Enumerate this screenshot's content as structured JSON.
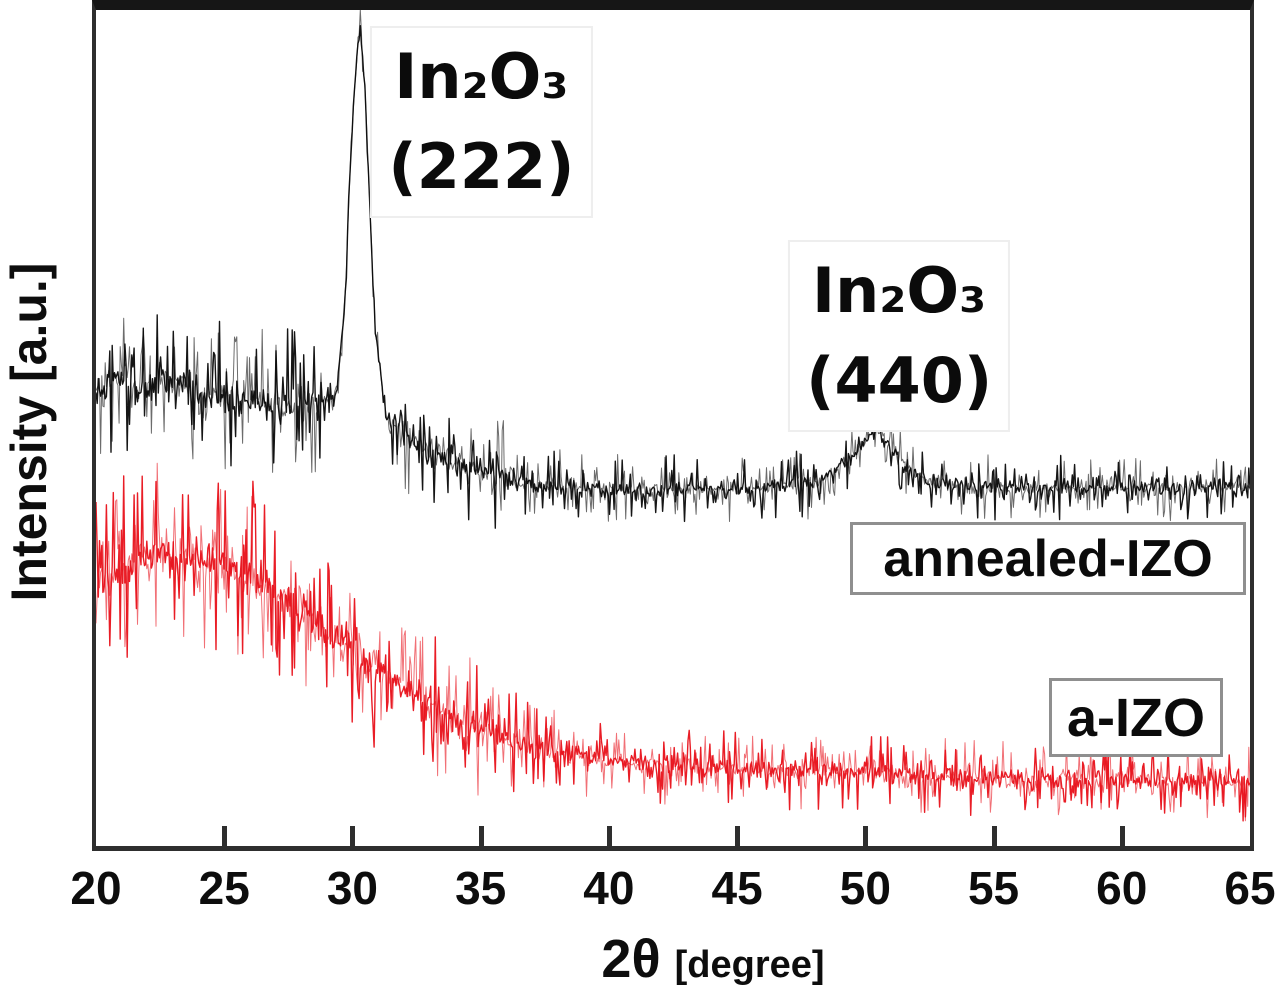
{
  "figure": {
    "xlabel_main": "2θ",
    "xlabel_unit": "[degree]",
    "ylabel": "Intensity [a.u.]"
  },
  "legend": {
    "annealed": "annealed-IZO",
    "amorphous": "a-IZO"
  },
  "chart_data": {
    "type": "line",
    "title": "",
    "xlabel": "2θ [degree]",
    "ylabel": "Intensity [a.u.]",
    "xlim": [
      20,
      65
    ],
    "x_ticks": [
      20,
      25,
      30,
      35,
      40,
      45,
      50,
      55,
      60,
      65
    ],
    "y_axis": "arbitrary units (no y tick labels)",
    "grid": false,
    "legend_position": "inside right, boxed labels next to each trace",
    "peaks": [
      {
        "x_2theta": 30.3,
        "phase": "In₂O₃",
        "plane": "(222)",
        "series": "annealed-IZO"
      },
      {
        "x_2theta": 50.5,
        "phase": "In₂O₃",
        "plane": "(440)",
        "series": "annealed-IZO"
      }
    ],
    "annotations": [
      {
        "lines": [
          "In₂O₃",
          "(222)"
        ],
        "x": 35.1,
        "y_frac": 0.87
      },
      {
        "lines": [
          "In₂O₃",
          "(440)"
        ],
        "x": 51.4,
        "y_frac": 0.61
      }
    ],
    "series": [
      {
        "name": "annealed-IZO",
        "color": "#0a0a0a",
        "description": "noisy trace, flat background with sharp In2O3(222) peak at 30.3 and weak In2O3(440) bump at 50.5",
        "anchors": [
          [
            20,
            0.54
          ],
          [
            20.6,
            0.556
          ],
          [
            21,
            0.56
          ],
          [
            21.5,
            0.55
          ],
          [
            22,
            0.548
          ],
          [
            22.5,
            0.556
          ],
          [
            23,
            0.553
          ],
          [
            23.5,
            0.549
          ],
          [
            24,
            0.543
          ],
          [
            25,
            0.537
          ],
          [
            26,
            0.534
          ],
          [
            27,
            0.531
          ],
          [
            28,
            0.526
          ],
          [
            29,
            0.531
          ],
          [
            29.4,
            0.543
          ],
          [
            29.7,
            0.65
          ],
          [
            29.9,
            0.8
          ],
          [
            30.1,
            0.92
          ],
          [
            30.3,
            0.979
          ],
          [
            30.5,
            0.9
          ],
          [
            30.7,
            0.75
          ],
          [
            30.9,
            0.617
          ],
          [
            31.3,
            0.512
          ],
          [
            32,
            0.49
          ],
          [
            33,
            0.471
          ],
          [
            34,
            0.457
          ],
          [
            35,
            0.447
          ],
          [
            36,
            0.44
          ],
          [
            37,
            0.434
          ],
          [
            38.5,
            0.431
          ],
          [
            40,
            0.428
          ],
          [
            42,
            0.426
          ],
          [
            44,
            0.427
          ],
          [
            46,
            0.428
          ],
          [
            48,
            0.434
          ],
          [
            49.3,
            0.459
          ],
          [
            50.0,
            0.486
          ],
          [
            50.45,
            0.502
          ],
          [
            51,
            0.476
          ],
          [
            51.7,
            0.45
          ],
          [
            52.5,
            0.435
          ],
          [
            54,
            0.431
          ],
          [
            56,
            0.428
          ],
          [
            58,
            0.429
          ],
          [
            60,
            0.428
          ],
          [
            62,
            0.429
          ],
          [
            65,
            0.429
          ]
        ],
        "noise": [
          [
            20,
            28.8,
            0.034
          ],
          [
            28.8,
            31.4,
            0.01
          ],
          [
            31.4,
            36,
            0.026
          ],
          [
            36,
            48.8,
            0.016
          ],
          [
            48.8,
            51.8,
            0.014
          ],
          [
            51.8,
            65,
            0.015
          ]
        ]
      },
      {
        "name": "a-IZO",
        "color": "#e8111a",
        "description": "amorphous halo: broad noisy hump centered near 22.5 decaying to flat background above 40",
        "anchors": [
          [
            20,
            0.304
          ],
          [
            20.7,
            0.323
          ],
          [
            21.5,
            0.337
          ],
          [
            22.3,
            0.348
          ],
          [
            23,
            0.347
          ],
          [
            24,
            0.341
          ],
          [
            25,
            0.335
          ],
          [
            26,
            0.322
          ],
          [
            27,
            0.304
          ],
          [
            28,
            0.281
          ],
          [
            29,
            0.258
          ],
          [
            30,
            0.235
          ],
          [
            31,
            0.213
          ],
          [
            32,
            0.191
          ],
          [
            33,
            0.172
          ],
          [
            34,
            0.156
          ],
          [
            35,
            0.141
          ],
          [
            36,
            0.128
          ],
          [
            37,
            0.118
          ],
          [
            38,
            0.112
          ],
          [
            39.5,
            0.105
          ],
          [
            41,
            0.1
          ],
          [
            43,
            0.096
          ],
          [
            45,
            0.092
          ],
          [
            47,
            0.09
          ],
          [
            49,
            0.089
          ],
          [
            51,
            0.086
          ],
          [
            53,
            0.084
          ],
          [
            55,
            0.081
          ],
          [
            57,
            0.08
          ],
          [
            59,
            0.079
          ],
          [
            61,
            0.078
          ],
          [
            63,
            0.077
          ],
          [
            65,
            0.077
          ]
        ],
        "noise": [
          [
            20,
            26.5,
            0.044
          ],
          [
            26.5,
            31,
            0.038
          ],
          [
            31,
            35,
            0.032
          ],
          [
            35,
            39,
            0.024
          ],
          [
            39,
            65,
            0.018
          ]
        ]
      }
    ]
  }
}
